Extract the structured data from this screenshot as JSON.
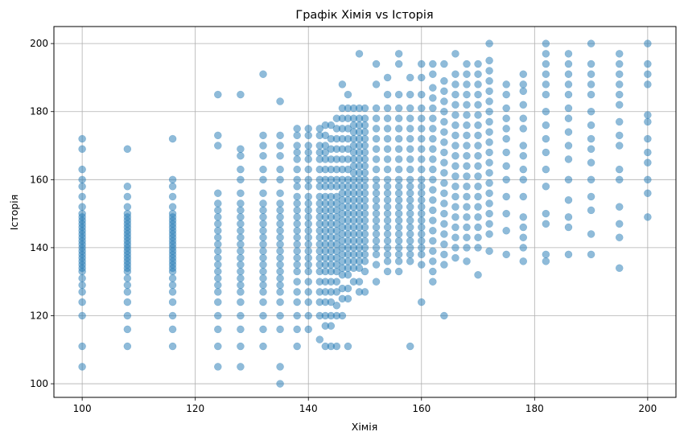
{
  "chart_data": {
    "type": "scatter",
    "title": "Графік Хімія vs Історія",
    "xlabel": "Хімія",
    "ylabel": "Історія",
    "xlim": [
      95,
      205
    ],
    "ylim": [
      96,
      205
    ],
    "xticks": [
      100,
      120,
      140,
      160,
      180,
      200
    ],
    "yticks": [
      100,
      120,
      140,
      160,
      180,
      200
    ],
    "grid": true,
    "point_color": "#1f77b4",
    "point_alpha": 0.5,
    "series": [
      {
        "x_values": [
          100,
          108,
          116,
          124,
          128,
          132,
          135,
          138,
          140,
          142,
          143,
          144,
          145,
          146,
          147,
          148,
          149,
          150,
          152,
          154,
          156,
          158,
          160,
          162,
          164,
          166,
          168,
          170,
          172,
          175,
          178,
          182,
          186,
          190,
          195,
          200
        ],
        "columns": [
          [
            105,
            111,
            120,
            124,
            127,
            129,
            131,
            133,
            134,
            135,
            136,
            137,
            138,
            139,
            140,
            141,
            142,
            143,
            144,
            145,
            146,
            147,
            148,
            149,
            150,
            152,
            155,
            158,
            160,
            163,
            169,
            172
          ],
          [
            111,
            116,
            120,
            124,
            127,
            129,
            131,
            133,
            134,
            135,
            136,
            137,
            138,
            139,
            140,
            141,
            142,
            143,
            144,
            145,
            146,
            147,
            148,
            149,
            150,
            152,
            155,
            158,
            169
          ],
          [
            111,
            116,
            120,
            124,
            127,
            129,
            131,
            133,
            134,
            135,
            136,
            137,
            138,
            139,
            140,
            141,
            142,
            143,
            144,
            145,
            146,
            147,
            148,
            149,
            150,
            152,
            155,
            158,
            160,
            172
          ],
          [
            105,
            111,
            116,
            120,
            124,
            127,
            129,
            131,
            133,
            135,
            137,
            139,
            141,
            143,
            145,
            147,
            149,
            151,
            153,
            156,
            170,
            173,
            185
          ],
          [
            105,
            111,
            116,
            120,
            124,
            127,
            129,
            131,
            133,
            135,
            137,
            139,
            141,
            143,
            145,
            147,
            149,
            151,
            153,
            156,
            160,
            163,
            167,
            169,
            185
          ],
          [
            111,
            116,
            120,
            124,
            127,
            129,
            131,
            133,
            135,
            137,
            139,
            141,
            143,
            145,
            147,
            149,
            151,
            153,
            156,
            160,
            163,
            167,
            170,
            173,
            191
          ],
          [
            100,
            105,
            116,
            120,
            124,
            127,
            129,
            131,
            133,
            135,
            137,
            139,
            141,
            143,
            145,
            147,
            149,
            151,
            153,
            156,
            160,
            163,
            167,
            170,
            173,
            183
          ],
          [
            111,
            116,
            120,
            124,
            127,
            130,
            133,
            135,
            137,
            139,
            141,
            143,
            145,
            147,
            149,
            151,
            153,
            155,
            158,
            160,
            163,
            166,
            168,
            170,
            173,
            175
          ],
          [
            116,
            120,
            124,
            127,
            130,
            133,
            135,
            137,
            139,
            141,
            143,
            145,
            147,
            149,
            151,
            153,
            155,
            158,
            160,
            163,
            166,
            168,
            170,
            173,
            175
          ],
          [
            113,
            120,
            124,
            127,
            130,
            133,
            135,
            137,
            139,
            141,
            143,
            145,
            147,
            149,
            151,
            153,
            155,
            158,
            160,
            163,
            166,
            168,
            170,
            173,
            175
          ],
          [
            111,
            117,
            120,
            124,
            127,
            130,
            133,
            135,
            137,
            139,
            141,
            143,
            145,
            147,
            149,
            151,
            153,
            155,
            158,
            160,
            163,
            166,
            168,
            170,
            173,
            176
          ],
          [
            111,
            117,
            120,
            124,
            127,
            130,
            133,
            135,
            137,
            139,
            141,
            143,
            145,
            147,
            149,
            151,
            153,
            155,
            158,
            160,
            163,
            166,
            169,
            172,
            176
          ],
          [
            111,
            120,
            123,
            127,
            130,
            133,
            135,
            137,
            139,
            141,
            143,
            145,
            147,
            149,
            151,
            153,
            155,
            158,
            160,
            163,
            166,
            169,
            172,
            175,
            178
          ],
          [
            120,
            125,
            128,
            132,
            134,
            136,
            138,
            140,
            142,
            144,
            146,
            148,
            150,
            152,
            154,
            156,
            158,
            160,
            163,
            166,
            169,
            172,
            175,
            178,
            181,
            188
          ],
          [
            111,
            125,
            128,
            132,
            134,
            136,
            138,
            140,
            142,
            144,
            146,
            148,
            150,
            152,
            154,
            156,
            158,
            160,
            163,
            166,
            169,
            172,
            175,
            178,
            181,
            185
          ],
          [
            130,
            134,
            136,
            138,
            140,
            142,
            144,
            146,
            148,
            150,
            152,
            154,
            156,
            158,
            160,
            162,
            164,
            166,
            168,
            170,
            172,
            174,
            176,
            178,
            181
          ],
          [
            127,
            130,
            134,
            136,
            138,
            140,
            142,
            144,
            146,
            148,
            150,
            152,
            154,
            156,
            158,
            160,
            162,
            164,
            166,
            168,
            170,
            172,
            174,
            176,
            178,
            181,
            197
          ],
          [
            127,
            133,
            136,
            138,
            140,
            142,
            144,
            146,
            148,
            150,
            152,
            154,
            156,
            158,
            160,
            162,
            164,
            166,
            168,
            170,
            172,
            174,
            176,
            178,
            181
          ],
          [
            130,
            135,
            138,
            140,
            142,
            144,
            146,
            148,
            150,
            152,
            154,
            156,
            158,
            160,
            163,
            166,
            169,
            172,
            175,
            178,
            181,
            188,
            194
          ],
          [
            133,
            136,
            138,
            140,
            142,
            144,
            146,
            148,
            150,
            152,
            154,
            156,
            158,
            160,
            163,
            166,
            169,
            172,
            175,
            178,
            181,
            185,
            190
          ],
          [
            133,
            136,
            138,
            140,
            142,
            144,
            146,
            148,
            150,
            152,
            154,
            156,
            158,
            160,
            163,
            166,
            169,
            172,
            175,
            178,
            181,
            185,
            194,
            197
          ],
          [
            111,
            136,
            138,
            140,
            142,
            144,
            146,
            148,
            150,
            152,
            154,
            156,
            158,
            160,
            163,
            166,
            169,
            172,
            175,
            178,
            181,
            185,
            190
          ],
          [
            124,
            135,
            138,
            140,
            142,
            144,
            146,
            148,
            150,
            152,
            154,
            156,
            158,
            160,
            163,
            166,
            169,
            172,
            175,
            178,
            181,
            185,
            190,
            194
          ],
          [
            130,
            133,
            136,
            139,
            142,
            145,
            148,
            151,
            154,
            157,
            160,
            163,
            166,
            169,
            172,
            175,
            178,
            181,
            184,
            187,
            191,
            194
          ],
          [
            120,
            135,
            138,
            141,
            144,
            147,
            150,
            153,
            156,
            159,
            162,
            165,
            168,
            171,
            174,
            177,
            180,
            183,
            186,
            189,
            194
          ],
          [
            137,
            140,
            143,
            146,
            149,
            152,
            155,
            158,
            161,
            164,
            167,
            170,
            173,
            176,
            179,
            182,
            185,
            188,
            191,
            197
          ],
          [
            136,
            140,
            143,
            146,
            149,
            152,
            155,
            158,
            161,
            164,
            167,
            170,
            173,
            176,
            179,
            182,
            185,
            188,
            191,
            194
          ],
          [
            132,
            140,
            143,
            146,
            149,
            152,
            155,
            158,
            161,
            164,
            167,
            170,
            173,
            176,
            179,
            182,
            185,
            188,
            191,
            194
          ],
          [
            139,
            144,
            147,
            150,
            153,
            156,
            159,
            162,
            165,
            168,
            171,
            174,
            177,
            180,
            183,
            186,
            189,
            192,
            195,
            200
          ],
          [
            138,
            145,
            150,
            155,
            160,
            164,
            168,
            172,
            175,
            178,
            181,
            185,
            188
          ],
          [
            136,
            140,
            143,
            146,
            149,
            155,
            160,
            163,
            167,
            170,
            175,
            178,
            182,
            186,
            188,
            191
          ],
          [
            136,
            138,
            147,
            150,
            158,
            163,
            168,
            172,
            176,
            180,
            185,
            188,
            191,
            194,
            197,
            200
          ],
          [
            138,
            146,
            149,
            154,
            160,
            166,
            170,
            174,
            178,
            181,
            185,
            188,
            191,
            194,
            197
          ],
          [
            138,
            144,
            151,
            155,
            160,
            165,
            169,
            172,
            176,
            180,
            185,
            188,
            191,
            194,
            200
          ],
          [
            134,
            143,
            147,
            152,
            160,
            163,
            170,
            173,
            177,
            182,
            185,
            188,
            191,
            194,
            197
          ],
          [
            149,
            156,
            160,
            165,
            168,
            172,
            177,
            179,
            188,
            191,
            194,
            200
          ]
        ]
      }
    ]
  }
}
